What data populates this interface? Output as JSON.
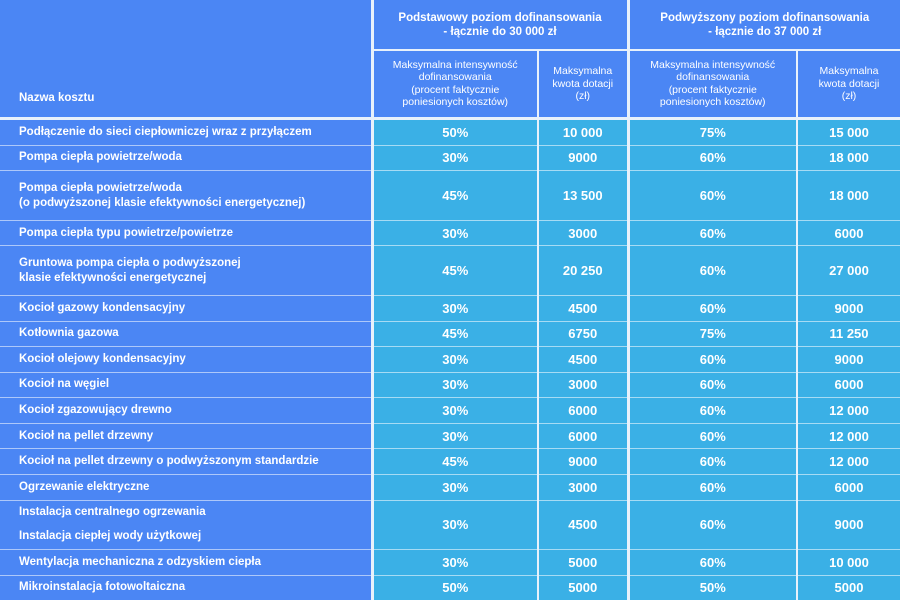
{
  "header": {
    "name_col": "Nazwa kosztu",
    "group_basic": [
      "Podstawowy poziom dofinansowania",
      "- łącznie do 30 000 zł"
    ],
    "group_raised": [
      "Podwyższony poziom dofinansowania",
      "- łącznie do 37 000 zł"
    ],
    "sub_intensity": [
      "Maksymalna intensywność",
      "dofinansowania",
      "(procent faktycznie",
      "poniesionych kosztów)"
    ],
    "sub_amount": [
      "Maksymalna",
      "kwota dotacji",
      "(zł)"
    ]
  },
  "rows": [
    {
      "name": [
        "Podłączenie do sieci ciepłowniczej wraz z przyłączem"
      ],
      "basic_pct": "50%",
      "basic_amt": "10 000",
      "raised_pct": "75%",
      "raised_amt": "15 000"
    },
    {
      "name": [
        "Pompa ciepła powietrze/woda"
      ],
      "basic_pct": "30%",
      "basic_amt": "9000",
      "raised_pct": "60%",
      "raised_amt": "18 000"
    },
    {
      "name": [
        "Pompa ciepła powietrze/woda",
        "(o podwyższonej klasie efektywności energetycznej)"
      ],
      "basic_pct": "45%",
      "basic_amt": "13 500",
      "raised_pct": "60%",
      "raised_amt": "18 000"
    },
    {
      "name": [
        "Pompa ciepła typu powietrze/powietrze"
      ],
      "basic_pct": "30%",
      "basic_amt": "3000",
      "raised_pct": "60%",
      "raised_amt": "6000"
    },
    {
      "name": [
        "Gruntowa pompa ciepła o podwyższonej",
        "klasie efektywności energetycznej"
      ],
      "basic_pct": "45%",
      "basic_amt": "20 250",
      "raised_pct": "60%",
      "raised_amt": "27 000"
    },
    {
      "name": [
        "Kocioł gazowy kondensacyjny"
      ],
      "basic_pct": "30%",
      "basic_amt": "4500",
      "raised_pct": "60%",
      "raised_amt": "9000"
    },
    {
      "name": [
        "Kotłownia gazowa"
      ],
      "basic_pct": "45%",
      "basic_amt": "6750",
      "raised_pct": "75%",
      "raised_amt": "11 250"
    },
    {
      "name": [
        "Kocioł olejowy kondensacyjny"
      ],
      "basic_pct": "30%",
      "basic_amt": "4500",
      "raised_pct": "60%",
      "raised_amt": "9000"
    },
    {
      "name": [
        "Kocioł na węgiel"
      ],
      "basic_pct": "30%",
      "basic_amt": "3000",
      "raised_pct": "60%",
      "raised_amt": "6000"
    },
    {
      "name": [
        "Kocioł zgazowujący drewno"
      ],
      "basic_pct": "30%",
      "basic_amt": "6000",
      "raised_pct": "60%",
      "raised_amt": "12 000"
    },
    {
      "name": [
        "Kocioł na pellet drzewny"
      ],
      "basic_pct": "30%",
      "basic_amt": "6000",
      "raised_pct": "60%",
      "raised_amt": "12 000"
    },
    {
      "name": [
        "Kocioł na pellet drzewny o podwyższonym standardzie"
      ],
      "basic_pct": "45%",
      "basic_amt": "9000",
      "raised_pct": "60%",
      "raised_amt": "12 000"
    },
    {
      "name": [
        "Ogrzewanie elektryczne"
      ],
      "basic_pct": "30%",
      "basic_amt": "3000",
      "raised_pct": "60%",
      "raised_amt": "6000"
    },
    {
      "names_split": [
        "Instalacja centralnego ogrzewania",
        "Instalacja ciepłej wody użytkowej"
      ],
      "basic_pct": "30%",
      "basic_amt": "4500",
      "raised_pct": "60%",
      "raised_amt": "9000"
    },
    {
      "name": [
        "Wentylacja mechaniczna z odzyskiem ciepła"
      ],
      "basic_pct": "30%",
      "basic_amt": "5000",
      "raised_pct": "60%",
      "raised_amt": "10 000"
    },
    {
      "name": [
        "Mikroinstalacja fotowoltaiczna"
      ],
      "basic_pct": "50%",
      "basic_amt": "5000",
      "raised_pct": "50%",
      "raised_amt": "5000"
    }
  ],
  "colors": {
    "name_bg": "#4b86f4",
    "value_bg": "#3ab0e6",
    "grid_line": "#e8f1fb",
    "text": "#ffffff"
  }
}
